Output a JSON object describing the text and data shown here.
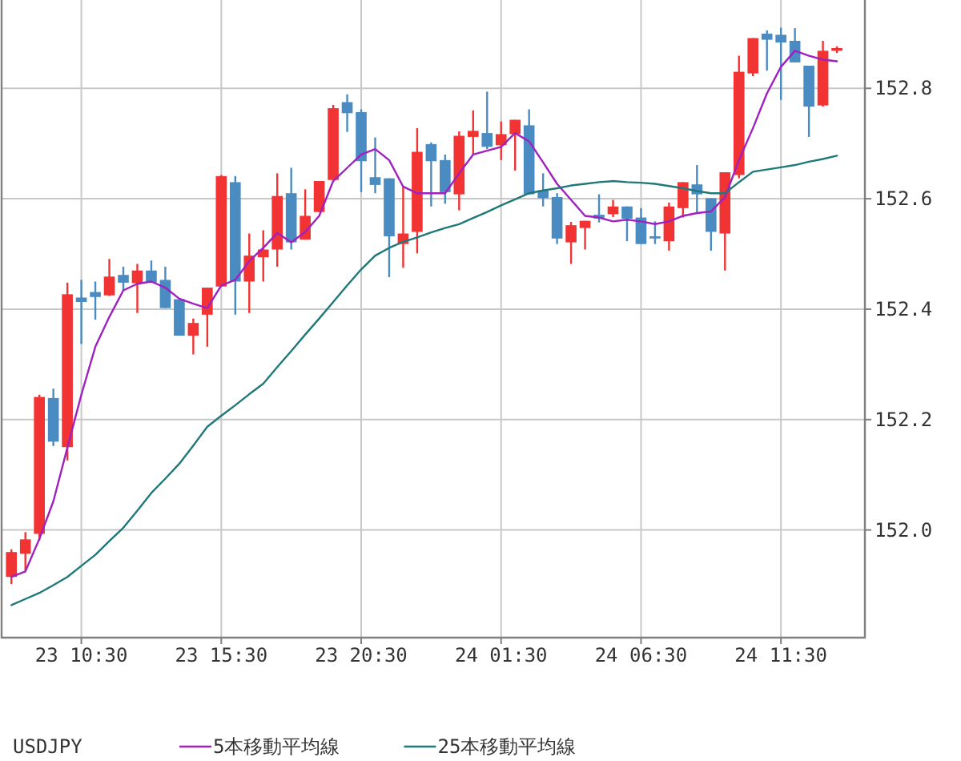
{
  "chart_data": {
    "type": "candlestick",
    "title": "USDJPY",
    "categories": [
      null,
      null,
      null,
      null,
      null,
      "23 10:30",
      null,
      null,
      null,
      null,
      null,
      null,
      null,
      null,
      null,
      "23 15:30",
      null,
      null,
      null,
      null,
      null,
      null,
      null,
      null,
      null,
      "23 20:30",
      null,
      null,
      null,
      null,
      null,
      null,
      null,
      null,
      null,
      "24 01:30",
      null,
      null,
      null,
      null,
      null,
      null,
      null,
      null,
      null,
      "24 06:30",
      null,
      null,
      null,
      null,
      null,
      null,
      null,
      null,
      null,
      "24 11:30",
      null,
      null,
      null,
      null
    ],
    "ohlc": [
      [
        151.915,
        151.965,
        151.902,
        151.96
      ],
      [
        151.957,
        151.996,
        151.926,
        151.983
      ],
      [
        151.993,
        152.245,
        151.981,
        152.241
      ],
      [
        152.239,
        152.256,
        152.152,
        152.16
      ],
      [
        152.15,
        152.448,
        152.126,
        152.427
      ],
      [
        152.421,
        152.453,
        152.337,
        152.413
      ],
      [
        152.431,
        152.45,
        152.381,
        152.422
      ],
      [
        152.425,
        152.491,
        152.424,
        152.459
      ],
      [
        152.462,
        152.477,
        152.433,
        152.448
      ],
      [
        152.447,
        152.482,
        152.393,
        152.47
      ],
      [
        152.47,
        152.488,
        152.448,
        152.448
      ],
      [
        152.453,
        152.477,
        152.402,
        152.402
      ],
      [
        152.418,
        152.418,
        152.352,
        152.352
      ],
      [
        152.352,
        152.383,
        152.318,
        152.375
      ],
      [
        152.39,
        152.439,
        152.332,
        152.439
      ],
      [
        152.441,
        152.643,
        152.441,
        152.641
      ],
      [
        152.63,
        152.641,
        152.39,
        152.45
      ],
      [
        152.45,
        152.537,
        152.393,
        152.497
      ],
      [
        152.494,
        152.543,
        152.45,
        152.508
      ],
      [
        152.508,
        152.646,
        152.477,
        152.605
      ],
      [
        152.61,
        152.656,
        152.508,
        152.521
      ],
      [
        152.526,
        152.617,
        152.526,
        152.569
      ],
      [
        152.576,
        152.632,
        152.576,
        152.632
      ],
      [
        152.634,
        152.77,
        152.634,
        152.764
      ],
      [
        152.775,
        152.789,
        152.721,
        152.755
      ],
      [
        152.757,
        152.762,
        152.612,
        152.668
      ],
      [
        152.639,
        152.711,
        152.61,
        152.625
      ],
      [
        152.637,
        152.637,
        152.458,
        152.532
      ],
      [
        152.518,
        152.622,
        152.475,
        152.537
      ],
      [
        152.54,
        152.728,
        152.501,
        152.685
      ],
      [
        152.699,
        152.702,
        152.586,
        152.668
      ],
      [
        152.67,
        152.68,
        152.591,
        152.612
      ],
      [
        152.608,
        152.722,
        152.579,
        152.714
      ],
      [
        152.712,
        152.76,
        152.68,
        152.723
      ],
      [
        152.719,
        152.794,
        152.69,
        152.694
      ],
      [
        152.697,
        152.74,
        152.67,
        152.717
      ],
      [
        152.717,
        152.743,
        152.651,
        152.743
      ],
      [
        152.733,
        152.762,
        152.608,
        152.608
      ],
      [
        152.615,
        152.646,
        152.586,
        152.601
      ],
      [
        152.603,
        152.61,
        152.518,
        152.528
      ],
      [
        152.521,
        152.558,
        152.482,
        152.552
      ],
      [
        152.547,
        152.56,
        152.508,
        152.56
      ],
      [
        152.571,
        152.608,
        152.557,
        152.564
      ],
      [
        152.572,
        152.598,
        152.567,
        152.586
      ],
      [
        152.586,
        152.586,
        152.523,
        152.564
      ],
      [
        152.566,
        152.583,
        152.518,
        152.518
      ],
      [
        152.532,
        152.559,
        152.518,
        152.528
      ],
      [
        152.523,
        152.593,
        152.506,
        152.586
      ],
      [
        152.583,
        152.63,
        152.566,
        152.63
      ],
      [
        152.626,
        152.661,
        152.574,
        152.608
      ],
      [
        152.601,
        152.601,
        152.506,
        152.54
      ],
      [
        152.537,
        152.648,
        152.47,
        152.648
      ],
      [
        152.643,
        152.859,
        152.637,
        152.83
      ],
      [
        152.827,
        152.891,
        152.822,
        152.891
      ],
      [
        152.899,
        152.905,
        152.832,
        152.888
      ],
      [
        152.897,
        152.91,
        152.779,
        152.883
      ],
      [
        152.886,
        152.909,
        152.847,
        152.847
      ],
      [
        152.841,
        152.841,
        152.712,
        152.767
      ],
      [
        152.769,
        152.886,
        152.767,
        152.868
      ],
      [
        152.868,
        152.876,
        152.864,
        152.873
      ]
    ],
    "colors": [
      "#f23333",
      "#f23333",
      "#f23333",
      "#4a8bc2",
      "#f23333",
      "#4a8bc2",
      "#4a8bc2",
      "#f23333",
      "#4a8bc2",
      "#f23333",
      "#4a8bc2",
      "#4a8bc2",
      "#4a8bc2",
      "#f23333",
      "#f23333",
      "#f23333",
      "#4a8bc2",
      "#f23333",
      "#f23333",
      "#f23333",
      "#4a8bc2",
      "#f23333",
      "#f23333",
      "#f23333",
      "#4a8bc2",
      "#4a8bc2",
      "#4a8bc2",
      "#4a8bc2",
      "#f23333",
      "#f23333",
      "#4a8bc2",
      "#4a8bc2",
      "#f23333",
      "#f23333",
      "#4a8bc2",
      "#f23333",
      "#f23333",
      "#4a8bc2",
      "#4a8bc2",
      "#4a8bc2",
      "#f23333",
      "#f23333",
      "#4a8bc2",
      "#f23333",
      "#4a8bc2",
      "#4a8bc2",
      "#4a8bc2",
      "#f23333",
      "#f23333",
      "#4a8bc2",
      "#4a8bc2",
      "#f23333",
      "#f23333",
      "#f23333",
      "#4a8bc2",
      "#4a8bc2",
      "#4a8bc2",
      "#4a8bc2",
      "#f23333",
      "#f23333"
    ],
    "series": [
      {
        "name": "5本移動平均線",
        "type": "line",
        "color": "#a020c0",
        "values": [
          151.915,
          151.925,
          151.984,
          152.052,
          152.149,
          152.245,
          152.332,
          152.386,
          152.434,
          152.446,
          152.45,
          152.439,
          152.419,
          152.41,
          152.402,
          152.443,
          152.453,
          152.487,
          152.511,
          152.538,
          152.521,
          152.54,
          152.569,
          152.632,
          152.656,
          152.68,
          152.69,
          152.67,
          152.622,
          152.61,
          152.61,
          152.61,
          152.646,
          152.68,
          152.687,
          152.694,
          152.719,
          152.704,
          152.666,
          152.627,
          152.598,
          152.569,
          152.566,
          152.559,
          152.562,
          152.559,
          152.554,
          152.559,
          152.569,
          152.574,
          152.577,
          152.603,
          152.67,
          152.728,
          152.791,
          152.839,
          152.868,
          152.859,
          152.852,
          152.849
        ]
      },
      {
        "name": "25本移動平均線",
        "type": "line",
        "color": "#207878",
        "values": [
          151.864,
          151.875,
          151.886,
          151.9,
          151.915,
          151.935,
          151.955,
          151.98,
          152.004,
          152.035,
          152.067,
          152.093,
          152.12,
          152.153,
          152.187,
          152.207,
          152.226,
          152.246,
          152.265,
          152.295,
          152.324,
          152.354,
          152.383,
          152.413,
          152.443,
          152.472,
          152.497,
          152.511,
          152.522,
          152.53,
          152.539,
          152.547,
          152.554,
          152.565,
          152.576,
          152.588,
          152.599,
          152.61,
          152.615,
          152.619,
          152.624,
          152.627,
          152.63,
          152.632,
          152.63,
          152.629,
          152.627,
          152.623,
          152.619,
          152.614,
          152.61,
          152.61,
          152.63,
          152.649,
          152.653,
          152.657,
          152.661,
          152.667,
          152.672,
          152.678
        ]
      }
    ],
    "ylim": [
      151.805,
      152.96
    ],
    "yticks": [
      {
        "value": 152,
        "label": "152.0"
      },
      152.2,
      152.4,
      152.6,
      152.8
    ],
    "grid": true,
    "legend": "bottom"
  }
}
